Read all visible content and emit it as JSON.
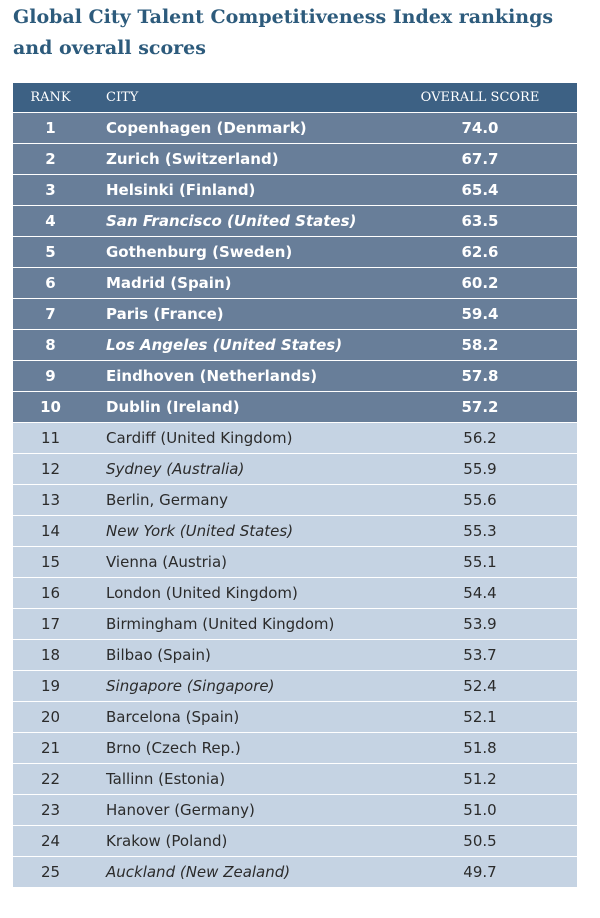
{
  "title": "Global City Talent Competitiveness Index rankings and overall scores",
  "table": {
    "headers": [
      "RANK",
      "CITY",
      "OVERALL SCORE"
    ],
    "highlight_count": 10,
    "rows": [
      {
        "rank": 1,
        "city": "Copenhagen (Denmark)",
        "score": "74.0",
        "italic": false
      },
      {
        "rank": 2,
        "city": "Zurich (Switzerland)",
        "score": "67.7",
        "italic": false
      },
      {
        "rank": 3,
        "city": "Helsinki (Finland)",
        "score": "65.4",
        "italic": false
      },
      {
        "rank": 4,
        "city": "San Francisco (United States)",
        "score": "63.5",
        "italic": true
      },
      {
        "rank": 5,
        "city": "Gothenburg (Sweden)",
        "score": "62.6",
        "italic": false
      },
      {
        "rank": 6,
        "city": "Madrid (Spain)",
        "score": "60.2",
        "italic": false
      },
      {
        "rank": 7,
        "city": "Paris (France)",
        "score": "59.4",
        "italic": false
      },
      {
        "rank": 8,
        "city": "Los Angeles (United States)",
        "score": "58.2",
        "italic": true
      },
      {
        "rank": 9,
        "city": "Eindhoven (Netherlands)",
        "score": "57.8",
        "italic": false
      },
      {
        "rank": 10,
        "city": "Dublin (Ireland)",
        "score": "57.2",
        "italic": false
      },
      {
        "rank": 11,
        "city": "Cardiff (United Kingdom)",
        "score": "56.2",
        "italic": false
      },
      {
        "rank": 12,
        "city": "Sydney (Australia)",
        "score": "55.9",
        "italic": true
      },
      {
        "rank": 13,
        "city": "Berlin, Germany",
        "score": "55.6",
        "italic": false
      },
      {
        "rank": 14,
        "city": "New York (United States)",
        "score": "55.3",
        "italic": true
      },
      {
        "rank": 15,
        "city": "Vienna (Austria)",
        "score": "55.1",
        "italic": false
      },
      {
        "rank": 16,
        "city": "London (United Kingdom)",
        "score": "54.4",
        "italic": false
      },
      {
        "rank": 17,
        "city": "Birmingham (United Kingdom)",
        "score": "53.9",
        "italic": false
      },
      {
        "rank": 18,
        "city": "Bilbao (Spain)",
        "score": "53.7",
        "italic": false
      },
      {
        "rank": 19,
        "city": "Singapore (Singapore)",
        "score": "52.4",
        "italic": true
      },
      {
        "rank": 20,
        "city": "Barcelona (Spain)",
        "score": "52.1",
        "italic": false
      },
      {
        "rank": 21,
        "city": "Brno (Czech Rep.)",
        "score": "51.8",
        "italic": false
      },
      {
        "rank": 22,
        "city": "Tallinn (Estonia)",
        "score": "51.2",
        "italic": false
      },
      {
        "rank": 23,
        "city": "Hanover (Germany)",
        "score": "51.0",
        "italic": false
      },
      {
        "rank": 24,
        "city": "Krakow (Poland)",
        "score": "50.5",
        "italic": false
      },
      {
        "rank": 25,
        "city": "Auckland (New Zealand)",
        "score": "49.7",
        "italic": true
      }
    ]
  }
}
